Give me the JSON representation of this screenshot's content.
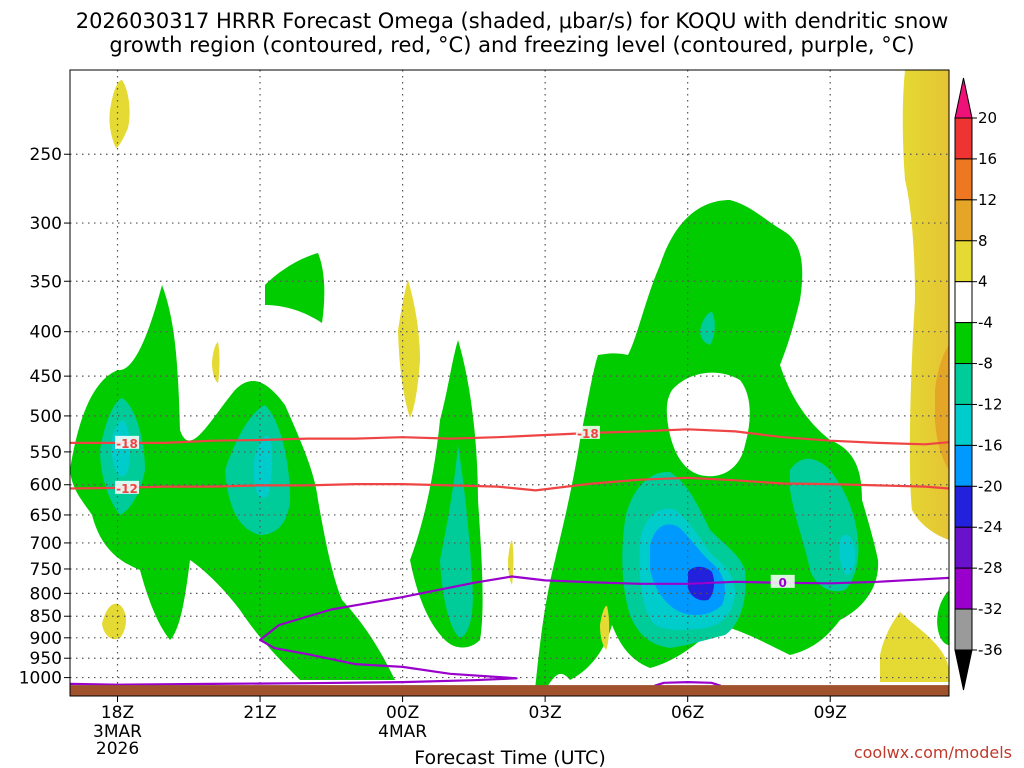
{
  "title_line1": "2026030317 HRRR Forecast Omega (shaded, μbar/s) for KOQU with dendritic snow",
  "title_line2": "growth region (contoured, red, °C) and freezing level (contoured, purple, °C)",
  "xlabel": "Forecast Time (UTC)",
  "credit": "coolwx.com/models",
  "colors": {
    "green": "#00cc00",
    "teal": "#00cc99",
    "cyan": "#00cccc",
    "blue": "#0099ff",
    "navy": "#2222dd",
    "yellow": "#e5d934",
    "dendritic_contour": "#ee4444",
    "freezing_contour": "#9900cc",
    "ground": "#a0522d"
  },
  "chart_data": {
    "type": "heatmap",
    "x_axis": {
      "ticks": [
        {
          "label": "18Z",
          "sub": [
            "3MAR",
            "2026"
          ]
        },
        {
          "label": "21Z",
          "sub": []
        },
        {
          "label": "00Z",
          "sub": [
            "4MAR"
          ]
        },
        {
          "label": "03Z",
          "sub": []
        },
        {
          "label": "06Z",
          "sub": []
        },
        {
          "label": "09Z",
          "sub": []
        }
      ],
      "hours": [
        0,
        3,
        6,
        9,
        12,
        15
      ],
      "range_hours": [
        -1,
        17.5
      ]
    },
    "y_axis": {
      "scale": "log-pressure",
      "unit": "hPa",
      "ticks": [
        250,
        300,
        350,
        400,
        450,
        500,
        550,
        600,
        650,
        700,
        750,
        800,
        850,
        900,
        950,
        1000
      ],
      "range": [
        200,
        1050
      ],
      "grid": true
    },
    "colorbar": {
      "unit": "μbar/s",
      "levels": [
        20,
        16,
        12,
        8,
        4,
        -4,
        -8,
        -12,
        -16,
        -20,
        -24,
        -28,
        -32,
        -36
      ],
      "colors": [
        "#ee1177",
        "#ee3333",
        "#ee7722",
        "#e5a526",
        "#e5d934",
        "#ffffff",
        "#00cc00",
        "#00cc99",
        "#00cccc",
        "#0099ff",
        "#2222dd",
        "#6a11cc",
        "#9900cc",
        "#9a9a9a",
        "#000000"
      ]
    },
    "contours": [
      {
        "label": "-18",
        "color": "dendritic",
        "points": [
          [
            -1,
            537
          ],
          [
            0,
            537
          ],
          [
            1,
            537
          ],
          [
            2,
            534
          ],
          [
            3,
            533
          ],
          [
            4,
            531
          ],
          [
            5,
            531
          ],
          [
            6,
            529
          ],
          [
            7,
            531
          ],
          [
            8,
            529
          ],
          [
            9,
            526
          ],
          [
            10,
            523
          ],
          [
            11,
            521
          ],
          [
            12,
            518
          ],
          [
            13,
            521
          ],
          [
            14,
            529
          ],
          [
            15,
            534
          ],
          [
            16,
            537
          ],
          [
            17,
            539
          ],
          [
            17.5,
            536
          ]
        ],
        "label_at": [
          [
            0.2,
            537
          ],
          [
            9.9,
            523
          ]
        ]
      },
      {
        "label": "-12",
        "color": "dendritic",
        "points": [
          [
            -1,
            606
          ],
          [
            0,
            605
          ],
          [
            1,
            603
          ],
          [
            2,
            603
          ],
          [
            3,
            601
          ],
          [
            4,
            601
          ],
          [
            5,
            599
          ],
          [
            6,
            599
          ],
          [
            7,
            601
          ],
          [
            8,
            603
          ],
          [
            8.8,
            609
          ],
          [
            10,
            598
          ],
          [
            11,
            592
          ],
          [
            12,
            589
          ],
          [
            13,
            593
          ],
          [
            14,
            598
          ],
          [
            15,
            599
          ],
          [
            16,
            601
          ],
          [
            17,
            603
          ],
          [
            17.5,
            606
          ]
        ],
        "label_at": [
          [
            0.2,
            605
          ]
        ]
      },
      {
        "label": "0",
        "color": "freezing",
        "points": [
          [
            17.5,
            768
          ],
          [
            16,
            776
          ],
          [
            15,
            779
          ],
          [
            14,
            778
          ],
          [
            13,
            776
          ],
          [
            12,
            780
          ],
          [
            11,
            780
          ],
          [
            10,
            777
          ],
          [
            9,
            773
          ],
          [
            8.3,
            765
          ],
          [
            7.5,
            778
          ],
          [
            6,
            808
          ],
          [
            4.5,
            835
          ],
          [
            3.4,
            870
          ],
          [
            3,
            905
          ],
          [
            3.3,
            925
          ],
          [
            4,
            940
          ],
          [
            5,
            965
          ],
          [
            6,
            972
          ],
          [
            7,
            990
          ],
          [
            8.4,
            1002
          ],
          [
            7.5,
            1007
          ],
          [
            6,
            1012
          ],
          [
            4,
            1015
          ],
          [
            2,
            1017
          ],
          [
            0,
            1019
          ],
          [
            -1,
            1017
          ]
        ],
        "label_at": [
          [
            14,
            776
          ]
        ]
      },
      {
        "label": "",
        "color": "freezing",
        "points": [
          [
            11.3,
            1022
          ],
          [
            11.5,
            1014
          ],
          [
            12,
            1012
          ],
          [
            12.5,
            1014
          ],
          [
            12.7,
            1022
          ]
        ],
        "label_at": []
      }
    ],
    "ground_top_hPa": 1020
  }
}
